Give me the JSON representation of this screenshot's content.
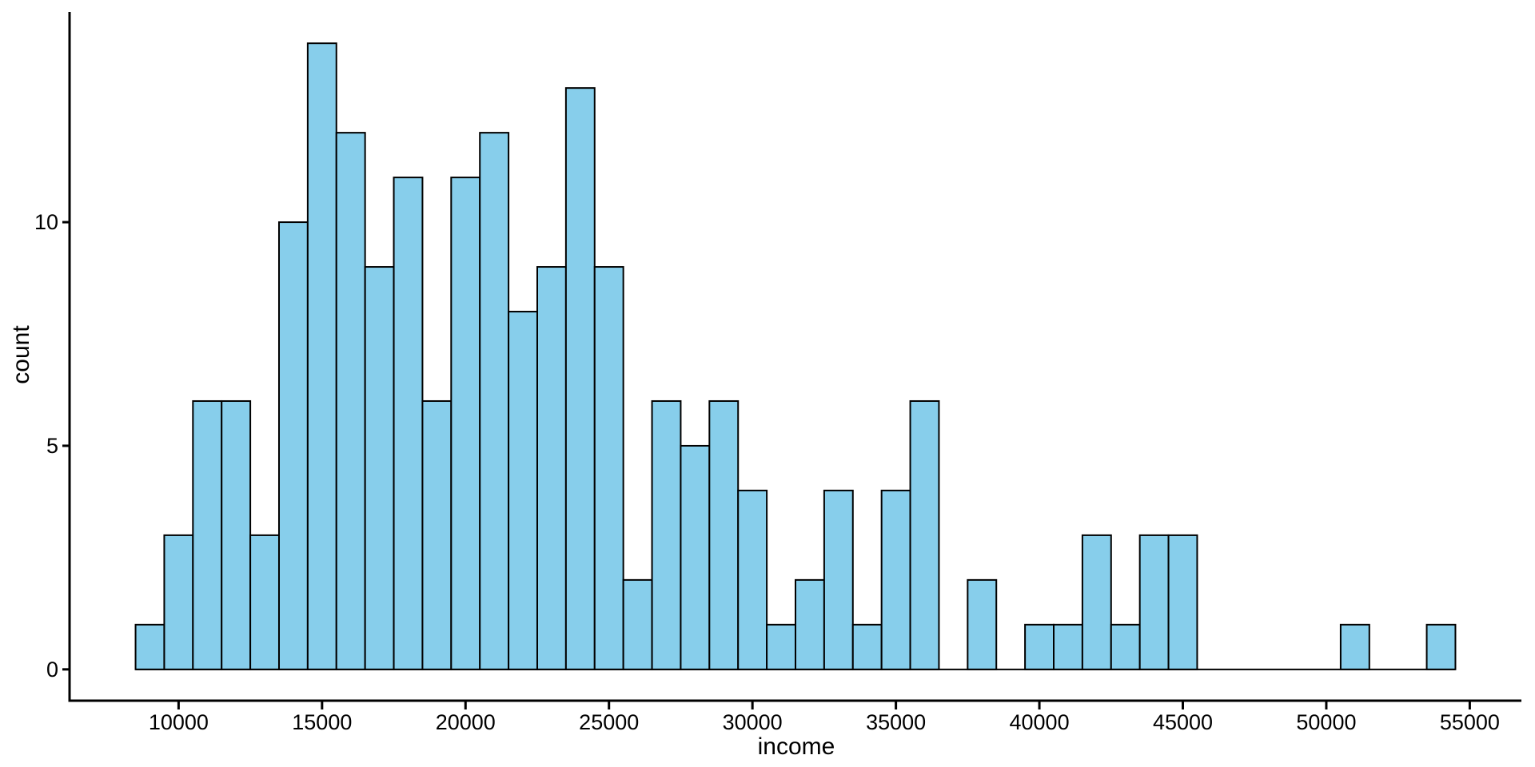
{
  "chart_data": {
    "type": "bar",
    "subtype": "histogram",
    "title": "",
    "xlabel": "income",
    "ylabel": "count",
    "bin_width": 1000,
    "bin_start": 8500,
    "bin_centers": [
      9000,
      10000,
      11000,
      12000,
      13000,
      14000,
      15000,
      16000,
      17000,
      18000,
      19000,
      20000,
      21000,
      22000,
      23000,
      24000,
      25000,
      26000,
      27000,
      28000,
      29000,
      30000,
      31000,
      32000,
      33000,
      34000,
      35000,
      36000,
      37000,
      38000,
      39000,
      40000,
      41000,
      42000,
      43000,
      44000,
      45000,
      46000,
      47000,
      48000,
      49000,
      50000,
      51000,
      52000,
      53000,
      54000
    ],
    "counts": [
      1,
      3,
      6,
      6,
      3,
      10,
      14,
      12,
      9,
      11,
      6,
      11,
      12,
      8,
      9,
      13,
      9,
      2,
      6,
      5,
      6,
      4,
      1,
      2,
      4,
      1,
      4,
      6,
      0,
      2,
      0,
      1,
      1,
      3,
      1,
      3,
      3,
      0,
      0,
      0,
      0,
      0,
      1,
      0,
      0,
      1
    ],
    "total_observations": 200,
    "x_ticks": [
      10000,
      15000,
      20000,
      25000,
      30000,
      35000,
      40000,
      45000,
      50000,
      55000
    ],
    "y_ticks": [
      0,
      5,
      10
    ],
    "xlim": [
      6200,
      56800
    ],
    "ylim": [
      -0.7,
      14.7
    ],
    "grid": false,
    "legend": false,
    "bar_fill": "#87CEEB",
    "bar_stroke": "#000000",
    "axis_color": "#000000",
    "text_color": "#000000",
    "background": "#FFFFFF"
  }
}
